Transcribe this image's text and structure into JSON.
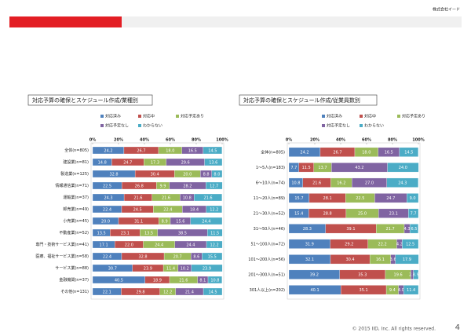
{
  "header": {
    "company": "株式会社イード"
  },
  "footer": {
    "copyright": "© 2015 IID, Inc.  All rights reserved.",
    "page": "4"
  },
  "chart_data": [
    {
      "type": "stacked_barh",
      "title": "対応予算の確保とスケジュール作成/業種別",
      "categories": [
        "全体(n=805)",
        "建設業(n=81)",
        "製造業(n=125)",
        "情報通信業(n=71)",
        "運輸業(n=37)",
        "卸売業(n=49)",
        "小売業(n=45)",
        "不動産業(n=52)",
        "専門・技術サービス業(n=41)",
        "医療、福祉サービス業(n=58)",
        "サービス業(n=88)",
        "金融機関(n=37)",
        "その他(n=131)"
      ],
      "series": [
        {
          "name": "対応済み",
          "color": "#4f81bd",
          "values": [
            24.2,
            14.8,
            32.8,
            22.5,
            24.3,
            22.4,
            20.0,
            13.5,
            17.1,
            22.4,
            30.7,
            40.5,
            22.1
          ],
          "value_labels": [
            "24.2",
            "14.8",
            "32.8",
            "22.5",
            "24.3",
            "22.4",
            "20.0",
            "13.5",
            "17.1",
            "22.4",
            "30.7",
            "40.5",
            "22.1"
          ]
        },
        {
          "name": "対応中",
          "color": "#c0504d",
          "values": [
            26.7,
            24.7,
            30.4,
            26.8,
            21.6,
            24.5,
            31.1,
            23.1,
            22.0,
            32.8,
            23.9,
            18.9,
            29.8
          ],
          "value_labels": [
            "26.7",
            "24.7",
            "30.4",
            "26.8",
            "21.6",
            "24.5",
            "31.1",
            "23.1",
            "22.0",
            "32.8",
            "23.9",
            "18.9",
            "29.8"
          ]
        },
        {
          "name": "対応予定あり",
          "color": "#9bbb59",
          "values": [
            18.0,
            17.3,
            20.0,
            9.9,
            21.6,
            22.4,
            8.9,
            13.5,
            24.4,
            20.7,
            11.4,
            21.6,
            12.2
          ],
          "value_labels": [
            "18.0",
            "17.3",
            "20.0",
            "9.9",
            "21.6",
            "22.4",
            "8.9",
            "13.5",
            "24.4",
            "20.7",
            "11.4",
            "21.6",
            "12.2"
          ]
        },
        {
          "name": "対応予定なし",
          "color": "#8064a2",
          "values": [
            16.5,
            29.6,
            8.8,
            28.2,
            10.8,
            18.4,
            15.6,
            38.5,
            24.4,
            8.6,
            10.2,
            8.1,
            21.4
          ],
          "value_labels": [
            "16.5",
            "29.6",
            "8.8",
            "28.2",
            "10.8",
            "18.4",
            "15.6",
            "38.5",
            "24.4",
            "8.6",
            "10.2",
            "8.1",
            "21.4"
          ]
        },
        {
          "name": "わからない",
          "color": "#4bacc6",
          "values": [
            14.5,
            13.6,
            8.0,
            12.7,
            21.6,
            12.2,
            24.4,
            11.5,
            12.2,
            15.5,
            23.9,
            10.8,
            14.5
          ],
          "value_labels": [
            "14.5",
            "13.6",
            "8.0",
            "12.7",
            "21.6",
            "12.2",
            "24.4",
            "11.5",
            "12.2",
            "15.5",
            "23.9",
            "10.8",
            "14.5"
          ]
        }
      ],
      "xlim": [
        0,
        100
      ],
      "xticks": [
        {
          "value": 0,
          "label": "0%"
        },
        {
          "value": 20,
          "label": "20%"
        },
        {
          "value": 40,
          "label": "40%"
        },
        {
          "value": 60,
          "label": "60%"
        },
        {
          "value": 80,
          "label": "80%"
        },
        {
          "value": 100,
          "label": "100%"
        }
      ],
      "legend": "top"
    },
    {
      "type": "stacked_barh",
      "title": "対応予算の確保とスケジュール作成/従業員数別",
      "categories": [
        "全体(n=805)",
        "1～5人(n=183)",
        "6～10人(n=74)",
        "11～20人(n=89)",
        "21～30人(n=52)",
        "31～50人(n=46)",
        "51～100人(n=72)",
        "101～200人(n=56)",
        "201～300人(n=51)",
        "301人以上(n=202)"
      ],
      "series": [
        {
          "name": "対応済み",
          "color": "#4f81bd",
          "values": [
            24.2,
            7.7,
            10.8,
            15.7,
            15.4,
            28.3,
            31.9,
            32.1,
            39.2,
            40.1
          ],
          "value_labels": [
            "24.2",
            "7.7",
            "10.8",
            "15.7",
            "15.4",
            "28.3",
            "31.9",
            "32.1",
            "39.2",
            "40.1"
          ]
        },
        {
          "name": "対応中",
          "color": "#c0504d",
          "values": [
            26.7,
            11.5,
            21.6,
            28.1,
            28.8,
            39.1,
            29.2,
            30.4,
            35.3,
            35.1
          ],
          "value_labels": [
            "26.7",
            "11.5",
            "21.6",
            "28.1",
            "28.8",
            "39.1",
            "29.2",
            "30.4",
            "35.3",
            "35.1"
          ]
        },
        {
          "name": "対応予定あり",
          "color": "#9bbb59",
          "values": [
            18.0,
            13.7,
            16.2,
            22.5,
            25.0,
            21.7,
            22.2,
            16.1,
            19.6,
            9.4
          ],
          "value_labels": [
            "18.0",
            "13.7",
            "16.2",
            "22.5",
            "25.0",
            "21.7",
            "22.2",
            "16.1",
            "19.6",
            "9.4"
          ]
        },
        {
          "name": "対応予定なし",
          "color": "#8064a2",
          "values": [
            16.5,
            43.2,
            27.0,
            24.7,
            23.1,
            4.3,
            4.2,
            3.6,
            2.0,
            4.0
          ],
          "value_labels": [
            "16.5",
            "43.2",
            "27.0",
            "24.7",
            "23.1",
            "4.3",
            "4.2",
            "3.6",
            "2.0",
            "4.0"
          ]
        },
        {
          "name": "わからない",
          "color": "#4bacc6",
          "values": [
            14.5,
            24.0,
            24.3,
            9.0,
            7.7,
            6.5,
            12.5,
            17.9,
            3.9,
            11.4
          ],
          "value_labels": [
            "14.5",
            "24.0",
            "24.3",
            "9.0",
            "7.7",
            "6.5",
            "12.5",
            "17.9",
            "3.9",
            "11.4"
          ]
        }
      ],
      "xlim": [
        0,
        100
      ],
      "xticks": [
        {
          "value": 0,
          "label": "0%"
        },
        {
          "value": 20,
          "label": "20%"
        },
        {
          "value": 40,
          "label": "40%"
        },
        {
          "value": 60,
          "label": "60%"
        },
        {
          "value": 80,
          "label": "80%"
        },
        {
          "value": 100,
          "label": "100%"
        }
      ],
      "legend": "top"
    }
  ]
}
